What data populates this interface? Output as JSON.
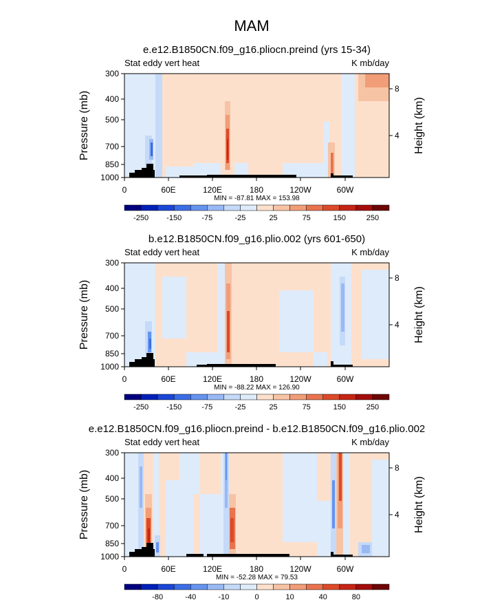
{
  "figure_title": "MAM",
  "common": {
    "left_label": "Stat eddy vert heat",
    "right_label": "K mb/day",
    "ylabel_left": "Pressure (mb)",
    "ylabel_right": "Height (km)",
    "pressure_ticks": [
      "300",
      "400",
      "500",
      "700",
      "850",
      "1000"
    ],
    "height_ticks": [
      "8",
      "4"
    ],
    "lon_ticks": [
      "0",
      "60E",
      "120E",
      "180",
      "120W",
      "60W"
    ]
  },
  "colors": {
    "palette": [
      "#00007f",
      "#0020b8",
      "#1a47d6",
      "#3b6de6",
      "#6593ee",
      "#98b9f3",
      "#c5daf8",
      "#deebfb",
      "#fde0cc",
      "#f7c3a5",
      "#f19d77",
      "#e8734e",
      "#dc4a29",
      "#c52515",
      "#a30d0b",
      "#6e0606"
    ],
    "terrain": "#000000"
  },
  "chart_data": [
    {
      "type": "heatmap",
      "title": "e.e12.B1850CN.f09_g16.pliocn.preind (yrs 15-34)",
      "xlabel": "",
      "ylabel": "Pressure (mb)",
      "stats": "MIN = -87.81   MAX = 153.98",
      "colorbar_labels": [
        "-250",
        "-150",
        "-75",
        "-25",
        "25",
        "75",
        "150",
        "250"
      ],
      "min": -87.81,
      "max": 153.98
    },
    {
      "type": "heatmap",
      "title": "b.e12.B1850CN.f09_g16.plio.002 (yrs 601-650)",
      "xlabel": "",
      "ylabel": "Pressure (mb)",
      "stats": "MIN = -88.22   MAX = 126.90",
      "colorbar_labels": [
        "-250",
        "-150",
        "-75",
        "-25",
        "25",
        "75",
        "150",
        "250"
      ],
      "min": -88.22,
      "max": 126.9
    },
    {
      "type": "heatmap",
      "title": "e.e12.B1850CN.f09_g16.pliocn.preind - b.e12.B1850CN.f09_g16.plio.002",
      "xlabel": "",
      "ylabel": "Pressure (mb)",
      "stats": "MIN = -52.28   MAX = 79.53",
      "colorbar_labels": [
        "-80",
        "-40",
        "-10",
        "0",
        "10",
        "40",
        "80"
      ],
      "min": -52.28,
      "max": 79.53
    }
  ]
}
